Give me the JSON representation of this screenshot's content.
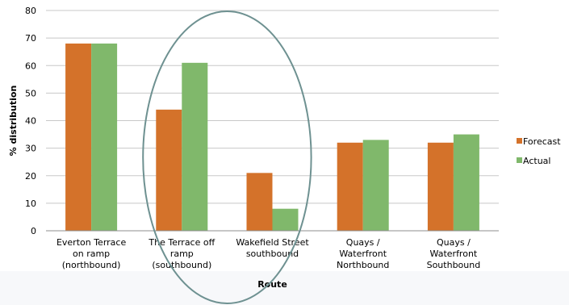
{
  "chart_data": {
    "type": "bar",
    "xlabel": "Route",
    "ylabel": "% distribution",
    "ylim": [
      0,
      80
    ],
    "yticks": [
      0,
      10,
      20,
      30,
      40,
      50,
      60,
      70,
      80
    ],
    "grid": true,
    "legend_position": "right",
    "categories": [
      [
        "Everton Terrace",
        "on ramp",
        "(northbound)"
      ],
      [
        "The Terrace off",
        "ramp",
        "(southbound)"
      ],
      [
        "Wakefield Street",
        "southbound"
      ],
      [
        "Quays /",
        "Waterfront",
        "Northbound"
      ],
      [
        "Quays /",
        "Waterfront",
        "Southbound"
      ]
    ],
    "series": [
      {
        "name": "Forecast",
        "color": "#d4722a",
        "values": [
          68,
          44,
          21,
          32,
          32
        ]
      },
      {
        "name": "Actual",
        "color": "#80b86b",
        "values": [
          68,
          61,
          8,
          33,
          35
        ]
      }
    ],
    "annotations": [
      {
        "type": "ellipse",
        "color": "#6e9191",
        "encloses_categories": [
          1,
          2
        ]
      }
    ]
  }
}
